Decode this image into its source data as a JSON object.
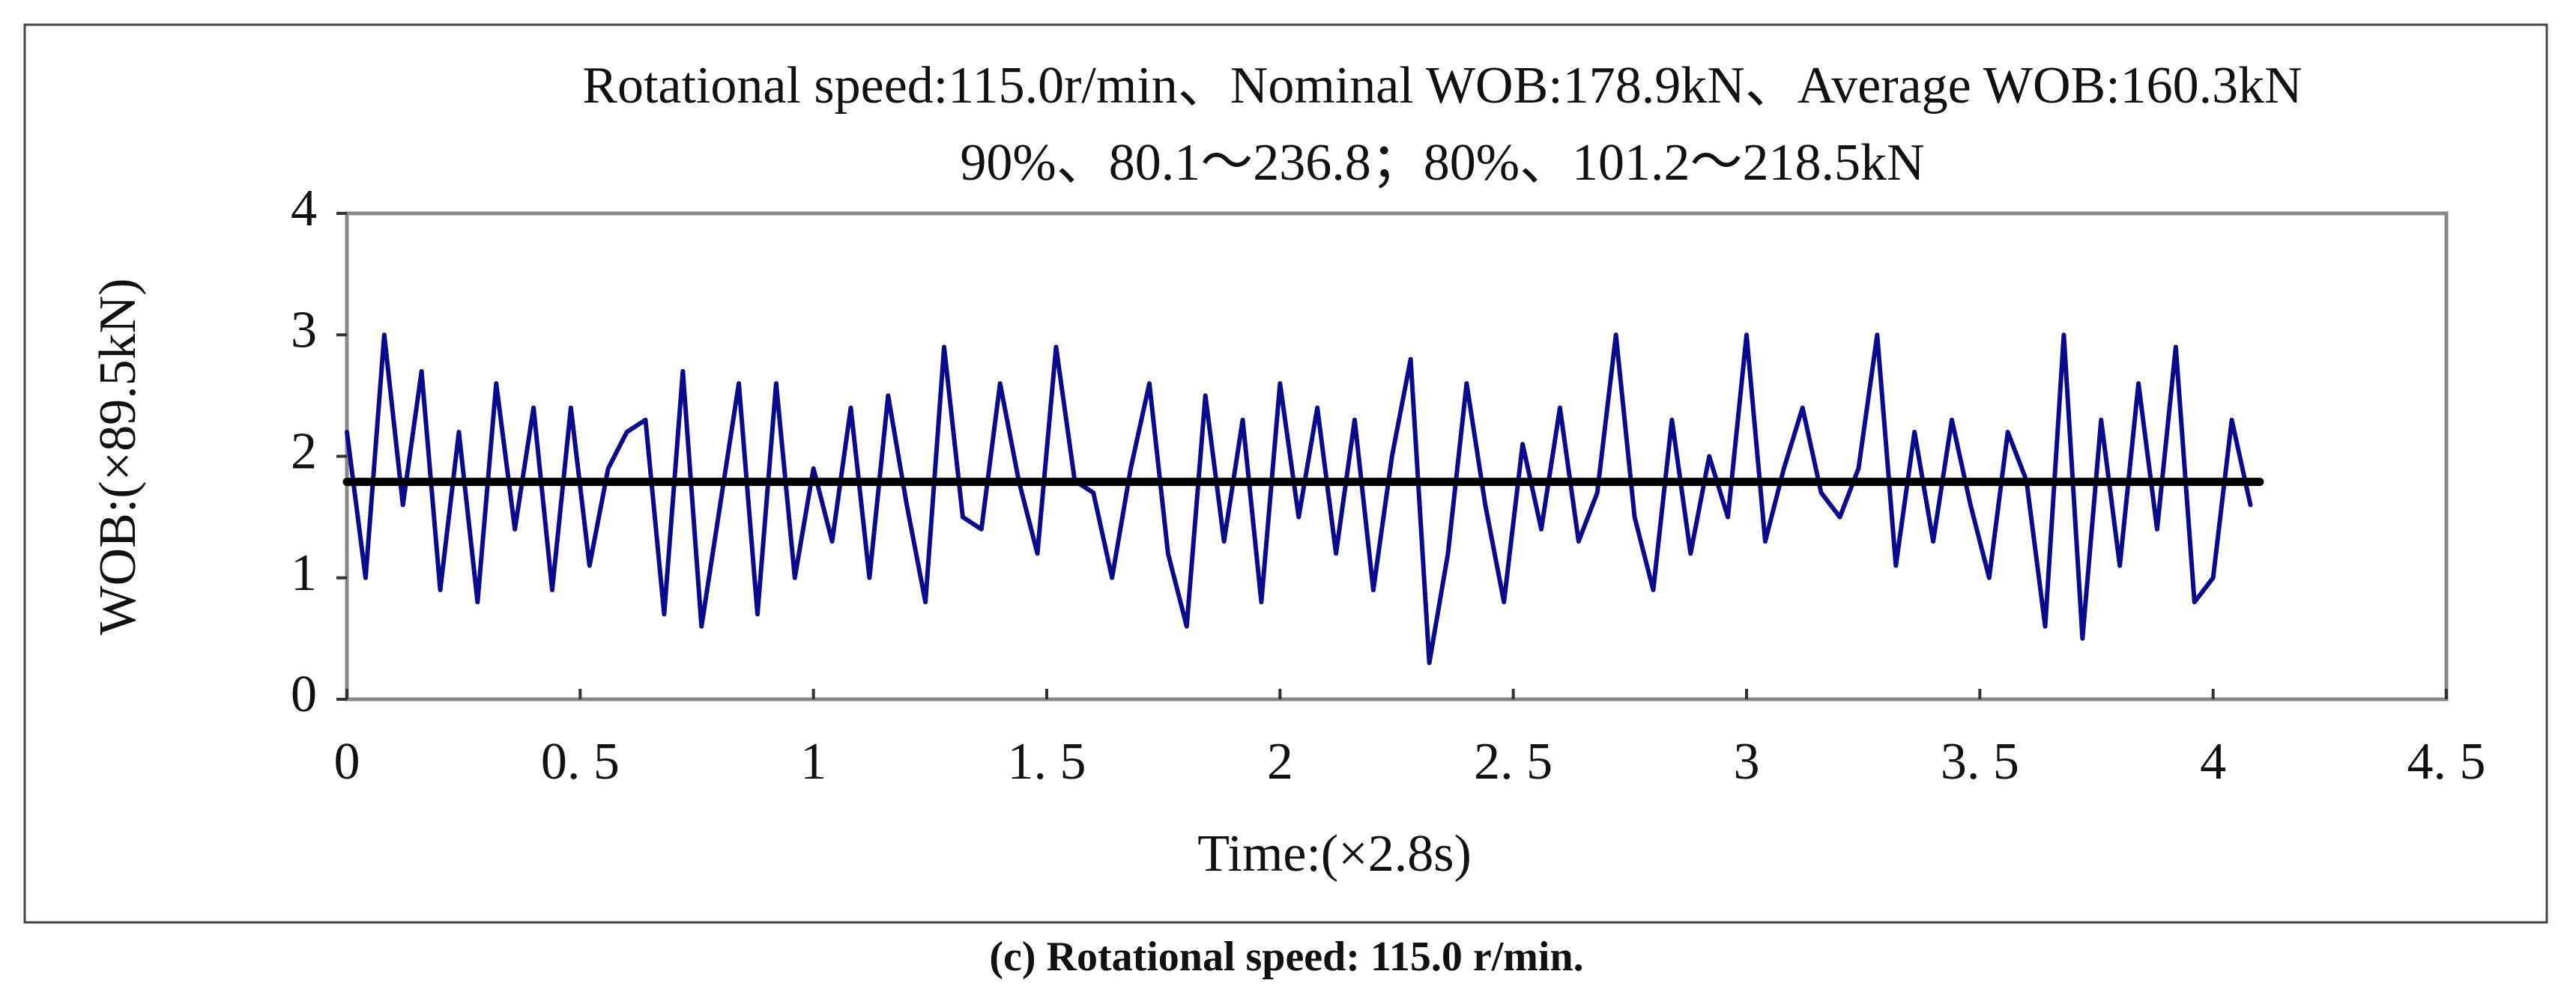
{
  "chart_data": {
    "type": "line",
    "title": "Rotational speed:115.0r/min、Nominal WOB:178.9kN、Average WOB:160.3kN",
    "subtitle": "90%、80.1～236.8；80%、101.2～218.5kN",
    "x_label": "Time:(×2.8s)",
    "y_label": "WOB:(×89.5kN)",
    "caption": "(c) Rotational speed: 115.0 r/min.",
    "xlim": [
      0,
      4.5
    ],
    "ylim": [
      0,
      4
    ],
    "xticks": [
      0,
      {
        "value": 0.5,
        "label": "0. 5"
      },
      1,
      {
        "value": 1.5,
        "label": "1. 5"
      },
      2,
      {
        "value": 2.5,
        "label": "2. 5"
      },
      3,
      {
        "value": 3.5,
        "label": "3. 5"
      },
      4,
      {
        "value": 4.5,
        "label": "4. 5"
      }
    ],
    "yticks": [
      0,
      1,
      2,
      3,
      4
    ],
    "grid": false,
    "series": [
      {
        "color": "#0a0a8c",
        "x": [
          0,
          0.04,
          0.08,
          0.12,
          0.16,
          0.2,
          0.24,
          0.28,
          0.32,
          0.36,
          0.4,
          0.44,
          0.48,
          0.52,
          0.56,
          0.6,
          0.64,
          0.68,
          0.72,
          0.76,
          0.8,
          0.84,
          0.88,
          0.92,
          0.96,
          1,
          1.04,
          1.08,
          1.12,
          1.16,
          1.2,
          1.24,
          1.28,
          1.32,
          1.36,
          1.4,
          1.44,
          1.48,
          1.52,
          1.56,
          1.6,
          1.64,
          1.68,
          1.72,
          1.76,
          1.8,
          1.84,
          1.88,
          1.92,
          1.96,
          2,
          2.04,
          2.08,
          2.12,
          2.16,
          2.2,
          2.24,
          2.28,
          2.32,
          2.36,
          2.4,
          2.44,
          2.48,
          2.52,
          2.56,
          2.6,
          2.64,
          2.68,
          2.72,
          2.76,
          2.8,
          2.84,
          2.88,
          2.92,
          2.96,
          3,
          3.04,
          3.08,
          3.12,
          3.16,
          3.2,
          3.24,
          3.28,
          3.32,
          3.36,
          3.4,
          3.44,
          3.48,
          3.52,
          3.56,
          3.6,
          3.64,
          3.68,
          3.72,
          3.76,
          3.8,
          3.84,
          3.88,
          3.92,
          3.96,
          4,
          4.04,
          4.08
        ],
        "values": [
          2.2,
          1.0,
          3.0,
          1.6,
          2.7,
          0.9,
          2.2,
          0.8,
          2.6,
          1.4,
          2.4,
          0.9,
          2.4,
          1.1,
          1.9,
          2.2,
          2.3,
          0.7,
          2.7,
          0.6,
          1.6,
          2.6,
          0.7,
          2.6,
          1.0,
          1.9,
          1.3,
          2.4,
          1.0,
          2.5,
          1.6,
          0.8,
          2.9,
          1.5,
          1.4,
          2.6,
          1.8,
          1.2,
          2.9,
          1.8,
          1.7,
          1.0,
          1.9,
          2.6,
          1.2,
          0.6,
          2.5,
          1.3,
          2.3,
          0.8,
          2.6,
          1.5,
          2.4,
          1.2,
          2.3,
          0.9,
          2.0,
          2.8,
          0.3,
          1.2,
          2.6,
          1.6,
          0.8,
          2.1,
          1.4,
          2.4,
          1.3,
          1.7,
          3.0,
          1.5,
          0.9,
          2.3,
          1.2,
          2.0,
          1.5,
          3.0,
          1.3,
          1.9,
          2.4,
          1.7,
          1.5,
          1.9,
          3.0,
          1.1,
          2.2,
          1.3,
          2.3,
          1.6,
          1.0,
          2.2,
          1.8,
          0.6,
          3.0,
          0.5,
          2.3,
          1.1,
          2.6,
          1.4,
          2.9,
          0.8,
          1.0,
          2.3,
          1.6
        ]
      },
      {
        "color": "#000000",
        "x": [
          0,
          4.1
        ],
        "values": [
          1.79,
          1.79
        ]
      }
    ]
  }
}
